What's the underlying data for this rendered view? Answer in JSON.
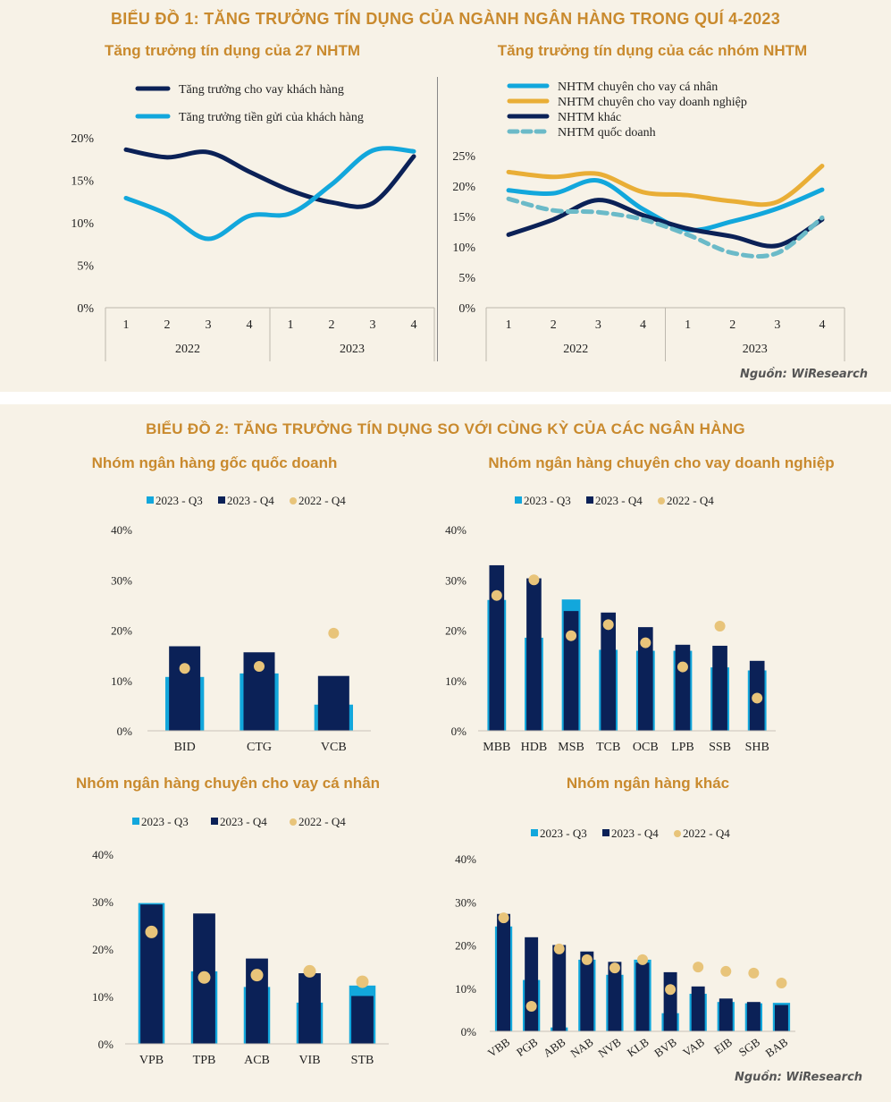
{
  "chart1": {
    "title": "BIỂU ĐỒ 1: TĂNG TRƯỞNG TÍN DỤNG CỦA NGÀNH NGÂN HÀNG TRONG QUÍ 4-2023",
    "source": "Nguồn: WiResearch"
  },
  "chart2": {
    "title": "BIỂU ĐỒ 2: TĂNG TRƯỞNG TÍN DỤNG SO VỚI CÙNG KỲ CỦA CÁC NGÂN HÀNG",
    "source": "Nguồn: WiResearch"
  },
  "colors": {
    "navy": "#0b2157",
    "cyan": "#12a7dc",
    "gold": "#e9ae36",
    "teal_dash": "#6bbac8",
    "dot": "#e8c47a",
    "title": "#c98a2e"
  },
  "chart_data": [
    {
      "id": "line27",
      "type": "line",
      "title": "Tăng trưởng tín dụng của 27 NHTM",
      "x": [
        "1",
        "2",
        "3",
        "4",
        "1",
        "2",
        "3",
        "4"
      ],
      "x_groups": [
        {
          "label": "2022",
          "span": 4
        },
        {
          "label": "2023",
          "span": 4
        }
      ],
      "yticks": [
        "0%",
        "5%",
        "10%",
        "15%",
        "20%"
      ],
      "ylim": [
        0,
        20
      ],
      "legend_position": "top",
      "series": [
        {
          "name": "Tăng trưởng cho vay khách hàng",
          "color": "#0b2157",
          "dash": false,
          "values": [
            18.6,
            17.7,
            18.3,
            16.0,
            13.8,
            12.4,
            12.3,
            17.8
          ]
        },
        {
          "name": "Tăng trưởng tiền gửi của khách hàng",
          "color": "#12a7dc",
          "dash": false,
          "values": [
            12.9,
            11.0,
            8.1,
            10.8,
            11.1,
            14.5,
            18.5,
            18.4
          ]
        }
      ]
    },
    {
      "id": "lineGroups",
      "type": "line",
      "title": "Tăng trưởng tín dụng của các nhóm NHTM",
      "x": [
        "1",
        "2",
        "3",
        "4",
        "1",
        "2",
        "3",
        "4"
      ],
      "x_groups": [
        {
          "label": "2022",
          "span": 4
        },
        {
          "label": "2023",
          "span": 4
        }
      ],
      "yticks": [
        "0%",
        "5%",
        "10%",
        "15%",
        "20%",
        "25%"
      ],
      "ylim": [
        0,
        25
      ],
      "legend_position": "top",
      "series": [
        {
          "name": "NHTM chuyên cho vay cá nhân",
          "color": "#12a7dc",
          "dash": false,
          "values": [
            19.3,
            18.8,
            20.9,
            16.2,
            12.8,
            14.2,
            16.3,
            19.4
          ]
        },
        {
          "name": "NHTM chuyên cho vay doanh nghiệp",
          "color": "#e9ae36",
          "dash": false,
          "values": [
            22.3,
            21.5,
            22.0,
            19.0,
            18.5,
            17.5,
            17.4,
            23.3
          ]
        },
        {
          "name": "NHTM khác",
          "color": "#0b2157",
          "dash": false,
          "values": [
            12.0,
            14.5,
            17.7,
            15.2,
            13.0,
            11.7,
            10.2,
            14.5
          ]
        },
        {
          "name": "NHTM quốc doanh",
          "color": "#6bbac8",
          "dash": true,
          "values": [
            17.9,
            16.0,
            15.7,
            14.5,
            12.0,
            9.0,
            9.0,
            14.8
          ]
        }
      ]
    },
    {
      "id": "barSOE",
      "type": "bar",
      "title": "Nhóm ngân hàng gốc quốc doanh",
      "categories": [
        "BID",
        "CTG",
        "VCB"
      ],
      "yticks": [
        "0%",
        "10%",
        "20%",
        "30%",
        "40%"
      ],
      "ylim": [
        0,
        40
      ],
      "legend_position": "top",
      "series": [
        {
          "name": "2023 - Q3",
          "kind": "wide-bar",
          "values": [
            10.7,
            11.4,
            5.2
          ]
        },
        {
          "name": "2023 - Q4",
          "kind": "narrow-bar",
          "values": [
            16.8,
            15.6,
            10.9
          ]
        },
        {
          "name": "2022 - Q4",
          "kind": "dot",
          "values": [
            12.4,
            12.8,
            19.4
          ]
        }
      ]
    },
    {
      "id": "barCorp",
      "type": "bar",
      "title": "Nhóm ngân hàng chuyên cho vay doanh nghiệp",
      "categories": [
        "MBB",
        "HDB",
        "MSB",
        "TCB",
        "OCB",
        "LPB",
        "SSB",
        "SHB"
      ],
      "yticks": [
        "0%",
        "10%",
        "20%",
        "30%",
        "40%"
      ],
      "ylim": [
        0,
        40
      ],
      "legend_position": "top",
      "series": [
        {
          "name": "2023 - Q3",
          "kind": "wide-bar",
          "values": [
            26.0,
            18.5,
            26.1,
            16.1,
            15.9,
            15.9,
            12.6,
            12.0
          ]
        },
        {
          "name": "2023 - Q4",
          "kind": "narrow-bar",
          "values": [
            32.9,
            30.3,
            23.8,
            23.5,
            20.6,
            17.1,
            16.9,
            13.9
          ]
        },
        {
          "name": "2022 - Q4",
          "kind": "dot",
          "values": [
            26.9,
            30.0,
            18.9,
            21.1,
            17.5,
            12.7,
            20.8,
            6.5
          ]
        }
      ]
    },
    {
      "id": "barRetail",
      "type": "bar",
      "title": "Nhóm ngân hàng chuyên cho vay cá nhân",
      "categories": [
        "VPB",
        "TPB",
        "ACB",
        "VIB",
        "STB"
      ],
      "yticks": [
        "0%",
        "10%",
        "20%",
        "30%",
        "40%"
      ],
      "ylim": [
        0,
        40
      ],
      "legend_position": "top",
      "series": [
        {
          "name": "2023 - Q3",
          "kind": "wide-bar",
          "values": [
            29.7,
            15.3,
            12.0,
            8.7,
            12.3
          ]
        },
        {
          "name": "2023 - Q4",
          "kind": "narrow-bar",
          "values": [
            29.4,
            27.5,
            18.0,
            14.9,
            10.1
          ]
        },
        {
          "name": "2022 - Q4",
          "kind": "dot",
          "values": [
            23.6,
            14.0,
            14.5,
            15.3,
            13.1
          ]
        }
      ]
    },
    {
      "id": "barOther",
      "type": "bar",
      "title": "Nhóm ngân hàng khác",
      "categories": [
        "VBB",
        "PGB",
        "ABB",
        "NAB",
        "NVB",
        "KLB",
        "BVB",
        "VAB",
        "EIB",
        "SGB",
        "BAB"
      ],
      "yticks": [
        "0%",
        "10%",
        "20%",
        "30%",
        "40%"
      ],
      "ylim": [
        0,
        40
      ],
      "legend_position": "top",
      "rotated_labels": true,
      "series": [
        {
          "name": "2023 - Q3",
          "kind": "wide-bar",
          "values": [
            24.3,
            11.9,
            0.9,
            16.6,
            13.1,
            16.6,
            4.2,
            8.7,
            6.8,
            6.5,
            6.6
          ]
        },
        {
          "name": "2023 - Q4",
          "kind": "narrow-bar",
          "values": [
            27.2,
            21.8,
            20.0,
            18.5,
            16.1,
            15.9,
            13.7,
            10.4,
            7.6,
            6.8,
            6.1
          ]
        },
        {
          "name": "2022 - Q4",
          "kind": "dot",
          "values": [
            26.3,
            5.8,
            19.1,
            16.6,
            14.7,
            16.6,
            9.7,
            14.9,
            13.9,
            13.5,
            11.2
          ]
        }
      ]
    }
  ]
}
